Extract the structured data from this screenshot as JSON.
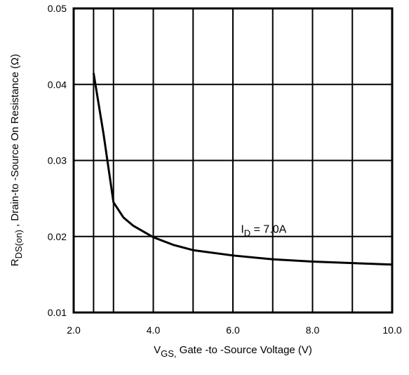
{
  "chart_data": {
    "type": "line",
    "xlim": [
      2.0,
      10.0
    ],
    "ylim": [
      0.01,
      0.05
    ],
    "x_ticks": [
      2.0,
      4.0,
      6.0,
      8.0,
      10.0
    ],
    "x_tick_labels": [
      "2.0",
      "4.0",
      "6.0",
      "8.0",
      "10.0"
    ],
    "y_ticks": [
      0.01,
      0.02,
      0.03,
      0.04,
      0.05
    ],
    "y_tick_labels": [
      "0.01",
      "0.02",
      "0.03",
      "0.04",
      "0.05"
    ],
    "x_grid": [
      2.5,
      3.0,
      4.0,
      5.0,
      6.0,
      7.0,
      8.0,
      9.0
    ],
    "grid": true,
    "xlabel": {
      "main": "V",
      "sub": "GS,",
      "rest": " Gate -to -Source Voltage  (V)"
    },
    "ylabel": {
      "main": "R",
      "sub": "DS(on)",
      "rest": " ,   Drain-to -Source On Resistance (Ω)"
    },
    "series": [
      {
        "x": [
          2.5,
          2.75,
          3.0,
          3.25,
          3.5,
          4.0,
          4.5,
          5.0,
          6.0,
          7.0,
          8.0,
          9.0,
          10.0
        ],
        "y": [
          0.0415,
          0.0335,
          0.0245,
          0.0225,
          0.0214,
          0.0199,
          0.0189,
          0.0182,
          0.0175,
          0.017,
          0.0167,
          0.0165,
          0.0163
        ]
      }
    ],
    "annotation": {
      "main": "I",
      "sub": "D",
      "rest": " = 7.0A",
      "x": 6.2,
      "y": 0.0205
    }
  }
}
